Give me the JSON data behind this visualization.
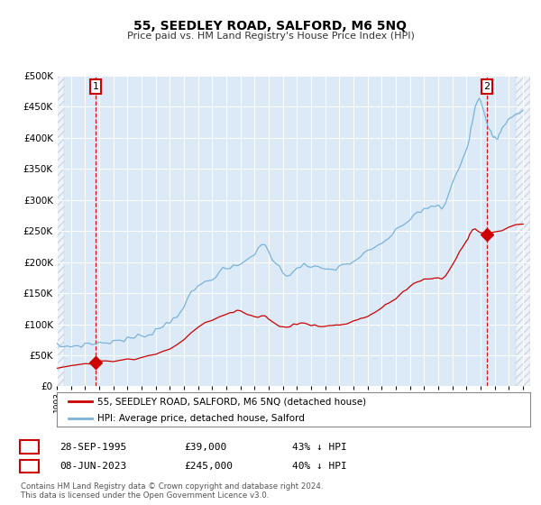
{
  "title": "55, SEEDLEY ROAD, SALFORD, M6 5NQ",
  "subtitle": "Price paid vs. HM Land Registry's House Price Index (HPI)",
  "bg_color": "#ffffff",
  "plot_bg_color": "#dce9f7",
  "grid_color": "#c8d8e8",
  "hpi_color": "#7ab3d9",
  "price_color": "#cc0000",
  "marker_color": "#cc0000",
  "annotation_color": "#cc0000",
  "ylim": [
    0,
    500000
  ],
  "yticks": [
    0,
    50000,
    100000,
    150000,
    200000,
    250000,
    300000,
    350000,
    400000,
    450000,
    500000
  ],
  "xlim_start": 1993.0,
  "xlim_end": 2026.5,
  "transaction1_date": 1995.75,
  "transaction1_price": 39000,
  "transaction1_label": "1",
  "transaction2_date": 2023.44,
  "transaction2_price": 245000,
  "transaction2_label": "2",
  "legend_label_price": "55, SEEDLEY ROAD, SALFORD, M6 5NQ (detached house)",
  "legend_label_hpi": "HPI: Average price, detached house, Salford",
  "footnote1": "Contains HM Land Registry data © Crown copyright and database right 2024.",
  "footnote2": "This data is licensed under the Open Government Licence v3.0.",
  "table_row1": [
    "1",
    "28-SEP-1995",
    "£39,000",
    "43% ↓ HPI"
  ],
  "table_row2": [
    "2",
    "08-JUN-2023",
    "£245,000",
    "40% ↓ HPI"
  ],
  "hpi_anchors": [
    [
      1993.0,
      65000
    ],
    [
      1993.25,
      64500
    ],
    [
      1993.5,
      63800
    ],
    [
      1993.75,
      64200
    ],
    [
      1994.0,
      65000
    ],
    [
      1994.25,
      65500
    ],
    [
      1994.5,
      66000
    ],
    [
      1994.75,
      66800
    ],
    [
      1995.0,
      67500
    ],
    [
      1995.25,
      68000
    ],
    [
      1995.5,
      68500
    ],
    [
      1995.75,
      69000
    ],
    [
      1996.0,
      70000
    ],
    [
      1996.25,
      70500
    ],
    [
      1996.5,
      71000
    ],
    [
      1996.75,
      71800
    ],
    [
      1997.0,
      73000
    ],
    [
      1997.25,
      73500
    ],
    [
      1997.5,
      74000
    ],
    [
      1997.75,
      74800
    ],
    [
      1998.0,
      76000
    ],
    [
      1998.25,
      77000
    ],
    [
      1998.5,
      78000
    ],
    [
      1998.75,
      79500
    ],
    [
      1999.0,
      81000
    ],
    [
      1999.25,
      83000
    ],
    [
      1999.5,
      85000
    ],
    [
      1999.75,
      88000
    ],
    [
      2000.0,
      91000
    ],
    [
      2000.25,
      94000
    ],
    [
      2000.5,
      97000
    ],
    [
      2000.75,
      101000
    ],
    [
      2001.0,
      105000
    ],
    [
      2001.25,
      110000
    ],
    [
      2001.5,
      116000
    ],
    [
      2001.75,
      122000
    ],
    [
      2002.0,
      130000
    ],
    [
      2002.25,
      138000
    ],
    [
      2002.5,
      148000
    ],
    [
      2002.75,
      155000
    ],
    [
      2003.0,
      160000
    ],
    [
      2003.25,
      165000
    ],
    [
      2003.5,
      168000
    ],
    [
      2003.75,
      172000
    ],
    [
      2004.0,
      176000
    ],
    [
      2004.25,
      180000
    ],
    [
      2004.5,
      183000
    ],
    [
      2004.75,
      186000
    ],
    [
      2005.0,
      188000
    ],
    [
      2005.25,
      190000
    ],
    [
      2005.5,
      191000
    ],
    [
      2005.75,
      193000
    ],
    [
      2006.0,
      196000
    ],
    [
      2006.25,
      200000
    ],
    [
      2006.5,
      205000
    ],
    [
      2006.75,
      210000
    ],
    [
      2007.0,
      215000
    ],
    [
      2007.25,
      222000
    ],
    [
      2007.5,
      228000
    ],
    [
      2007.75,
      225000
    ],
    [
      2008.0,
      218000
    ],
    [
      2008.25,
      208000
    ],
    [
      2008.5,
      198000
    ],
    [
      2008.75,
      190000
    ],
    [
      2009.0,
      183000
    ],
    [
      2009.25,
      180000
    ],
    [
      2009.5,
      182000
    ],
    [
      2009.75,
      188000
    ],
    [
      2010.0,
      192000
    ],
    [
      2010.25,
      194000
    ],
    [
      2010.5,
      195000
    ],
    [
      2010.75,
      193000
    ],
    [
      2011.0,
      191000
    ],
    [
      2011.25,
      190000
    ],
    [
      2011.5,
      189000
    ],
    [
      2011.75,
      190000
    ],
    [
      2012.0,
      188000
    ],
    [
      2012.25,
      187000
    ],
    [
      2012.5,
      189000
    ],
    [
      2012.75,
      191000
    ],
    [
      2013.0,
      193000
    ],
    [
      2013.25,
      194000
    ],
    [
      2013.5,
      196000
    ],
    [
      2013.75,
      199000
    ],
    [
      2014.0,
      202000
    ],
    [
      2014.25,
      206000
    ],
    [
      2014.5,
      209000
    ],
    [
      2014.75,
      212000
    ],
    [
      2015.0,
      215000
    ],
    [
      2015.25,
      218000
    ],
    [
      2015.5,
      222000
    ],
    [
      2015.75,
      226000
    ],
    [
      2016.0,
      230000
    ],
    [
      2016.25,
      235000
    ],
    [
      2016.5,
      240000
    ],
    [
      2016.75,
      244000
    ],
    [
      2017.0,
      248000
    ],
    [
      2017.25,
      254000
    ],
    [
      2017.5,
      260000
    ],
    [
      2017.75,
      265000
    ],
    [
      2018.0,
      270000
    ],
    [
      2018.25,
      275000
    ],
    [
      2018.5,
      280000
    ],
    [
      2018.75,
      283000
    ],
    [
      2019.0,
      286000
    ],
    [
      2019.25,
      287000
    ],
    [
      2019.5,
      287000
    ],
    [
      2019.75,
      288000
    ],
    [
      2020.0,
      288000
    ],
    [
      2020.25,
      286000
    ],
    [
      2020.5,
      295000
    ],
    [
      2020.75,
      310000
    ],
    [
      2021.0,
      325000
    ],
    [
      2021.25,
      340000
    ],
    [
      2021.5,
      355000
    ],
    [
      2021.75,
      368000
    ],
    [
      2022.0,
      382000
    ],
    [
      2022.1,
      390000
    ],
    [
      2022.2,
      400000
    ],
    [
      2022.3,
      412000
    ],
    [
      2022.4,
      425000
    ],
    [
      2022.5,
      438000
    ],
    [
      2022.6,
      448000
    ],
    [
      2022.7,
      455000
    ],
    [
      2022.8,
      460000
    ],
    [
      2022.9,
      462000
    ],
    [
      2023.0,
      458000
    ],
    [
      2023.1,
      450000
    ],
    [
      2023.2,
      442000
    ],
    [
      2023.3,
      435000
    ],
    [
      2023.4,
      428000
    ],
    [
      2023.5,
      420000
    ],
    [
      2023.6,
      415000
    ],
    [
      2023.7,
      412000
    ],
    [
      2023.8,
      408000
    ],
    [
      2023.9,
      405000
    ],
    [
      2024.0,
      403000
    ],
    [
      2024.1,
      402000
    ],
    [
      2024.2,
      403000
    ],
    [
      2024.3,
      406000
    ],
    [
      2024.4,
      410000
    ],
    [
      2024.5,
      415000
    ],
    [
      2024.6,
      420000
    ],
    [
      2024.7,
      424000
    ],
    [
      2024.8,
      427000
    ],
    [
      2024.9,
      430000
    ],
    [
      2025.0,
      432000
    ],
    [
      2025.25,
      436000
    ],
    [
      2025.5,
      440000
    ],
    [
      2025.75,
      443000
    ],
    [
      2026.0,
      445000
    ]
  ],
  "price_anchors": [
    [
      1993.0,
      31000
    ],
    [
      1993.5,
      31500
    ],
    [
      1994.0,
      32500
    ],
    [
      1994.5,
      33500
    ],
    [
      1995.0,
      35000
    ],
    [
      1995.5,
      37000
    ],
    [
      1995.75,
      39000
    ],
    [
      1996.0,
      39500
    ],
    [
      1996.5,
      40000
    ],
    [
      1997.0,
      40500
    ],
    [
      1997.5,
      41500
    ],
    [
      1998.0,
      42500
    ],
    [
      1998.5,
      44000
    ],
    [
      1999.0,
      46000
    ],
    [
      1999.5,
      48500
    ],
    [
      2000.0,
      52000
    ],
    [
      2000.5,
      56000
    ],
    [
      2001.0,
      61000
    ],
    [
      2001.5,
      68000
    ],
    [
      2002.0,
      76000
    ],
    [
      2002.5,
      86000
    ],
    [
      2003.0,
      95000
    ],
    [
      2003.5,
      102000
    ],
    [
      2004.0,
      107000
    ],
    [
      2004.5,
      112000
    ],
    [
      2005.0,
      115000
    ],
    [
      2005.25,
      118000
    ],
    [
      2005.5,
      120000
    ],
    [
      2005.75,
      122000
    ],
    [
      2006.0,
      122000
    ],
    [
      2006.25,
      118000
    ],
    [
      2006.5,
      115000
    ],
    [
      2006.75,
      113000
    ],
    [
      2007.0,
      112000
    ],
    [
      2007.25,
      113000
    ],
    [
      2007.5,
      115000
    ],
    [
      2007.75,
      113000
    ],
    [
      2008.0,
      108000
    ],
    [
      2008.25,
      103000
    ],
    [
      2008.5,
      100000
    ],
    [
      2008.75,
      97000
    ],
    [
      2009.0,
      95000
    ],
    [
      2009.25,
      96000
    ],
    [
      2009.5,
      97500
    ],
    [
      2009.75,
      99000
    ],
    [
      2010.0,
      101000
    ],
    [
      2010.25,
      101500
    ],
    [
      2010.5,
      101000
    ],
    [
      2010.75,
      100000
    ],
    [
      2011.0,
      99000
    ],
    [
      2011.25,
      98500
    ],
    [
      2011.5,
      98000
    ],
    [
      2011.75,
      97500
    ],
    [
      2012.0,
      97000
    ],
    [
      2012.25,
      97000
    ],
    [
      2012.5,
      97500
    ],
    [
      2012.75,
      98000
    ],
    [
      2013.0,
      99000
    ],
    [
      2013.25,
      100000
    ],
    [
      2013.5,
      101500
    ],
    [
      2013.75,
      103000
    ],
    [
      2014.0,
      105000
    ],
    [
      2014.25,
      107000
    ],
    [
      2014.5,
      109000
    ],
    [
      2014.75,
      111000
    ],
    [
      2015.0,
      113000
    ],
    [
      2015.25,
      116000
    ],
    [
      2015.5,
      119000
    ],
    [
      2015.75,
      122000
    ],
    [
      2016.0,
      126000
    ],
    [
      2016.25,
      130000
    ],
    [
      2016.5,
      134000
    ],
    [
      2016.75,
      138000
    ],
    [
      2017.0,
      142000
    ],
    [
      2017.25,
      147000
    ],
    [
      2017.5,
      152000
    ],
    [
      2017.75,
      156000
    ],
    [
      2018.0,
      161000
    ],
    [
      2018.25,
      165000
    ],
    [
      2018.5,
      168000
    ],
    [
      2018.75,
      170000
    ],
    [
      2019.0,
      172000
    ],
    [
      2019.25,
      172500
    ],
    [
      2019.5,
      172500
    ],
    [
      2019.75,
      173000
    ],
    [
      2020.0,
      173500
    ],
    [
      2020.25,
      173000
    ],
    [
      2020.5,
      178000
    ],
    [
      2020.75,
      186000
    ],
    [
      2021.0,
      196000
    ],
    [
      2021.25,
      207000
    ],
    [
      2021.5,
      216000
    ],
    [
      2021.75,
      225000
    ],
    [
      2022.0,
      234000
    ],
    [
      2022.1,
      238000
    ],
    [
      2022.2,
      243000
    ],
    [
      2022.3,
      248000
    ],
    [
      2022.4,
      252000
    ],
    [
      2022.5,
      254000
    ],
    [
      2022.6,
      254000
    ],
    [
      2022.7,
      252000
    ],
    [
      2022.8,
      250000
    ],
    [
      2022.9,
      248000
    ],
    [
      2023.0,
      247000
    ],
    [
      2023.1,
      246500
    ],
    [
      2023.2,
      246000
    ],
    [
      2023.3,
      245500
    ],
    [
      2023.44,
      245000
    ],
    [
      2023.6,
      245500
    ],
    [
      2023.8,
      246500
    ],
    [
      2024.0,
      248000
    ],
    [
      2024.5,
      252000
    ],
    [
      2025.0,
      256000
    ],
    [
      2025.5,
      259000
    ],
    [
      2026.0,
      261000
    ]
  ]
}
